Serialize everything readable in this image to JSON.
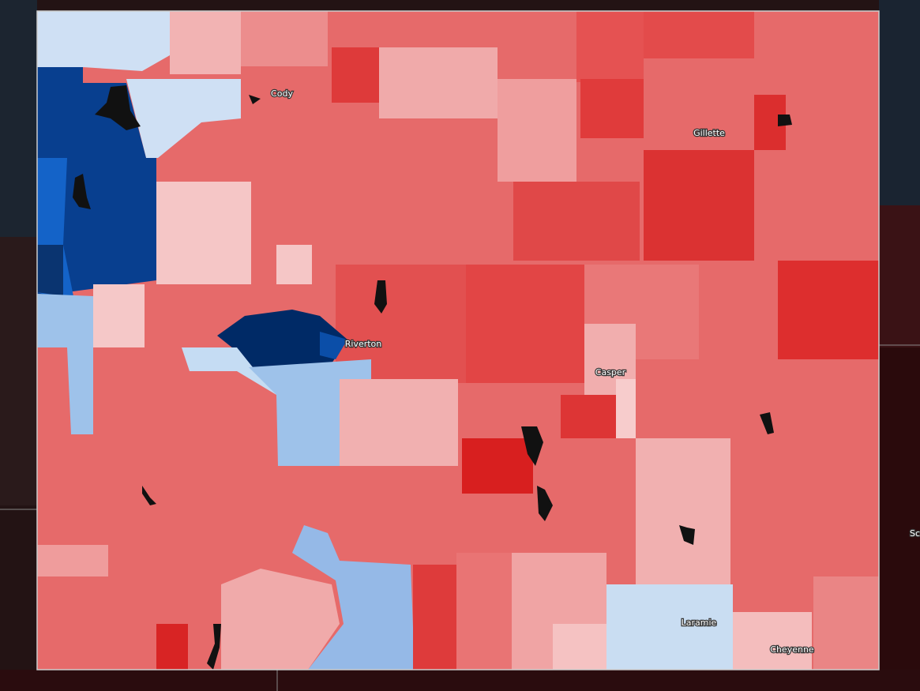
{
  "map": {
    "cities": [
      "Cody",
      "Gillette",
      "Riverton",
      "Casper",
      "Laramie",
      "Cheyenne"
    ],
    "edge_label": "Sc"
  }
}
